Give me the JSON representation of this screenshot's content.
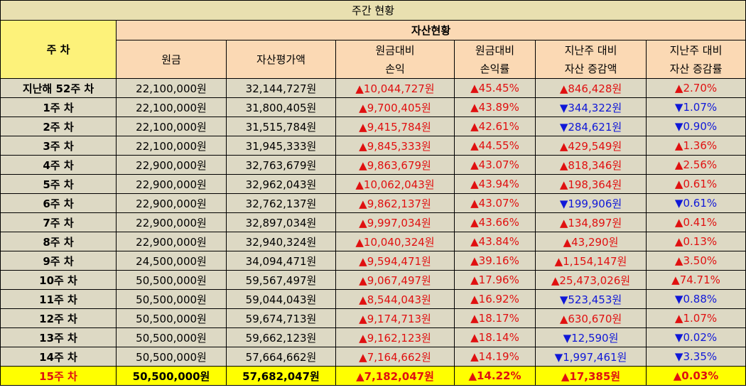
{
  "title": "주간 현황",
  "header": {
    "week": "주 차",
    "group": "자산현황",
    "columns": [
      [
        "원금"
      ],
      [
        "자산평가액"
      ],
      [
        "원금대비",
        "손익"
      ],
      [
        "원금대비",
        "손익률"
      ],
      [
        "지난주 대비",
        "자산 증감액"
      ],
      [
        "지난주 대비",
        "자산 증감률"
      ]
    ]
  },
  "colors": {
    "up": "#e01010",
    "down": "#1018d8",
    "highlight": "#ffff00",
    "header": "#fbd9b4"
  },
  "rows": [
    [
      "지난해 52주 차",
      "22,100,000원",
      "32,144,727원",
      "▲10,044,727원",
      "▲45.45%",
      "▲846,428원",
      "▲2.70%"
    ],
    [
      "1주 차",
      "22,100,000원",
      "31,800,405원",
      "▲9,700,405원",
      "▲43.89%",
      "▼344,322원",
      "▼1.07%"
    ],
    [
      "2주 차",
      "22,100,000원",
      "31,515,784원",
      "▲9,415,784원",
      "▲42.61%",
      "▼284,621원",
      "▼0.90%"
    ],
    [
      "3주 차",
      "22,100,000원",
      "31,945,333원",
      "▲9,845,333원",
      "▲44.55%",
      "▲429,549원",
      "▲1.36%"
    ],
    [
      "4주 차",
      "22,900,000원",
      "32,763,679원",
      "▲9,863,679원",
      "▲43.07%",
      "▲818,346원",
      "▲2.56%"
    ],
    [
      "5주 차",
      "22,900,000원",
      "32,962,043원",
      "▲10,062,043원",
      "▲43.94%",
      "▲198,364원",
      "▲0.61%"
    ],
    [
      "6주 차",
      "22,900,000원",
      "32,762,137원",
      "▲9,862,137원",
      "▲43.07%",
      "▼199,906원",
      "▼0.61%"
    ],
    [
      "7주 차",
      "22,900,000원",
      "32,897,034원",
      "▲9,997,034원",
      "▲43.66%",
      "▲134,897원",
      "▲0.41%"
    ],
    [
      "8주 차",
      "22,900,000원",
      "32,940,324원",
      "▲10,040,324원",
      "▲43.84%",
      "▲43,290원",
      "▲0.13%"
    ],
    [
      "9주 차",
      "24,500,000원",
      "34,094,471원",
      "▲9,594,471원",
      "▲39.16%",
      "▲1,154,147원",
      "▲3.50%"
    ],
    [
      "10주 차",
      "50,500,000원",
      "59,567,497원",
      "▲9,067,497원",
      "▲17.96%",
      "▲25,473,026원",
      "▲74.71%"
    ],
    [
      "11주 차",
      "50,500,000원",
      "59,044,043원",
      "▲8,544,043원",
      "▲16.92%",
      "▼523,453원",
      "▼0.88%"
    ],
    [
      "12주 차",
      "50,500,000원",
      "59,674,713원",
      "▲9,174,713원",
      "▲18.17%",
      "▲630,670원",
      "▲1.07%"
    ],
    [
      "13주 차",
      "50,500,000원",
      "59,662,123원",
      "▲9,162,123원",
      "▲18.14%",
      "▼12,590원",
      "▼0.02%"
    ],
    [
      "14주 차",
      "50,500,000원",
      "57,664,662원",
      "▲7,164,662원",
      "▲14.19%",
      "▼1,997,461원",
      "▼3.35%"
    ],
    [
      "15주 차",
      "50,500,000원",
      "57,682,047원",
      "▲7,182,047원",
      "▲14.22%",
      "▲17,385원",
      "▲0.03%"
    ]
  ]
}
